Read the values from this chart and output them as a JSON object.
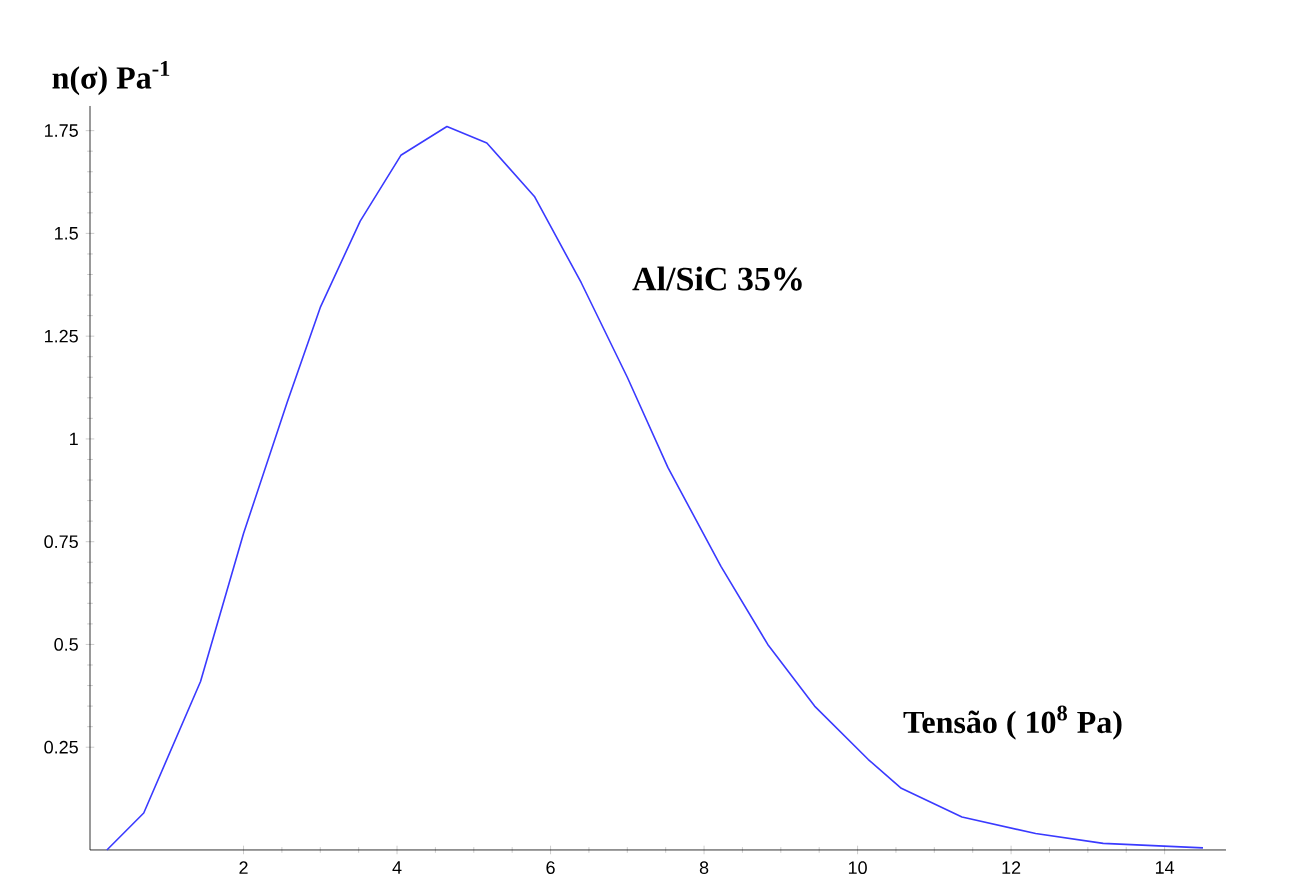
{
  "chart_data": {
    "type": "line",
    "xlabel": "Tensão ( 10$^{8}$ Pa)",
    "ylabel": "n(σ)  Pa$^{-1}$",
    "xlim": [
      0,
      14.8
    ],
    "ylim": [
      0,
      1.81
    ],
    "xticks": [
      2,
      4,
      6,
      8,
      10,
      12,
      14
    ],
    "yticks": [
      0.25,
      0.5,
      0.75,
      1,
      1.25,
      1.5,
      1.75
    ],
    "marker": "none",
    "line_style": "solid",
    "series": [
      {
        "name": "Al/SiC 35%",
        "color": "#3a3aff",
        "x": [
          0.22,
          0.7,
          1.44,
          2.0,
          2.57,
          3.0,
          3.52,
          4.05,
          4.65,
          5.17,
          5.79,
          6.4,
          7.0,
          7.53,
          8.22,
          8.83,
          9.44,
          10.14,
          10.57,
          11.36,
          12.32,
          13.2,
          14.5
        ],
        "values": [
          0,
          0.09,
          0.41,
          0.77,
          1.09,
          1.32,
          1.53,
          1.69,
          1.76,
          1.72,
          1.59,
          1.38,
          1.15,
          0.93,
          0.69,
          0.5,
          0.35,
          0.22,
          0.15,
          0.08,
          0.04,
          0.016,
          0.005
        ]
      }
    ]
  }
}
